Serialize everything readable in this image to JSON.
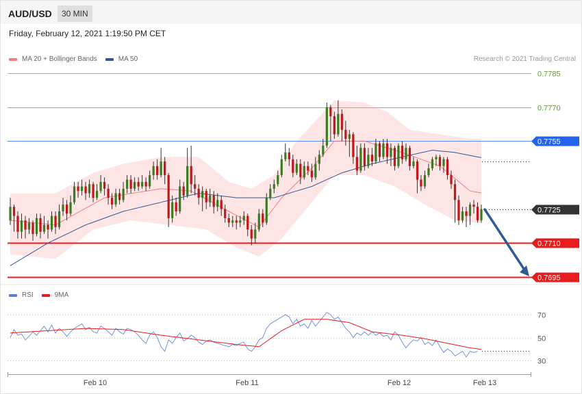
{
  "header": {
    "symbol": "AUD/USD",
    "timeframe": "30 MIN"
  },
  "timestamp": "Friday, February 12, 2021 1:19:50 PM CET",
  "credit": "Research © 2021 Trading Central",
  "legend_main": [
    {
      "label": "MA 20 + Bollinger Bands",
      "color": "#f08080"
    },
    {
      "label": "MA 50",
      "color": "#2f5a94"
    }
  ],
  "legend_rsi": [
    {
      "label": "RSI",
      "color": "#5b7fd6"
    },
    {
      "label": "9MA",
      "color": "#e81c1c"
    }
  ],
  "colors": {
    "up": "#3a7d1e",
    "down": "#c0161c",
    "wick": "#333333",
    "band": "#fcdcdc"
  },
  "chart_data": {
    "type": "candlestick",
    "title": "AUD/USD 30 MIN",
    "price_range": [
      0.769,
      0.7792
    ],
    "x_ticks": [
      "Feb 10",
      "Feb 11",
      "Feb 12",
      "Feb 13"
    ],
    "levels": [
      {
        "value": "0.7785",
        "price": 0.7785,
        "color": "#8dc26b",
        "text_color": "#5aa02c",
        "style": "line"
      },
      {
        "value": "0.7770",
        "price": 0.777,
        "color": "#8dc26b",
        "text_color": "#5aa02c",
        "style": "line"
      },
      {
        "value": "0.7755",
        "price": 0.7755,
        "color": "#5b8def",
        "tag": "#2463eb",
        "style": "line"
      },
      {
        "value": "0.7725",
        "price": 0.7725,
        "color": "#333333",
        "tag": "#333333",
        "style": "current"
      },
      {
        "value": "0.7710",
        "price": 0.771,
        "color": "#e81c1c",
        "tag": "#e81c1c",
        "style": "line"
      },
      {
        "value": "0.7695",
        "price": 0.7695,
        "color": "#e81c1c",
        "tag": "#e81c1c",
        "style": "line"
      }
    ],
    "forecast_arrow": {
      "from": 0.7725,
      "to": 0.7695
    },
    "rsi": {
      "range": [
        20,
        80
      ],
      "levels": [
        70,
        50,
        30
      ]
    },
    "candles": [
      [
        0.772,
        0.7726,
        0.773,
        0.7718
      ],
      [
        0.7726,
        0.7722,
        0.7727,
        0.7715
      ],
      [
        0.7722,
        0.7715,
        0.7724,
        0.7712
      ],
      [
        0.7715,
        0.772,
        0.7723,
        0.7712
      ],
      [
        0.772,
        0.7716,
        0.7722,
        0.7712
      ],
      [
        0.7716,
        0.7719,
        0.7721,
        0.7714
      ],
      [
        0.7719,
        0.7714,
        0.772,
        0.7711
      ],
      [
        0.7714,
        0.7721,
        0.7723,
        0.7713
      ],
      [
        0.7721,
        0.7715,
        0.7723,
        0.7712
      ],
      [
        0.7715,
        0.7718,
        0.7722,
        0.7714
      ],
      [
        0.7718,
        0.7716,
        0.772,
        0.7712
      ],
      [
        0.7716,
        0.7722,
        0.7724,
        0.7715
      ],
      [
        0.7722,
        0.7717,
        0.7724,
        0.7714
      ],
      [
        0.7717,
        0.7724,
        0.7727,
        0.7716
      ],
      [
        0.7724,
        0.7727,
        0.773,
        0.7722
      ],
      [
        0.7727,
        0.7723,
        0.7729,
        0.772
      ],
      [
        0.7723,
        0.7728,
        0.7731,
        0.7722
      ],
      [
        0.7728,
        0.7735,
        0.7737,
        0.7727
      ],
      [
        0.7735,
        0.7733,
        0.7737,
        0.773
      ],
      [
        0.7733,
        0.7735,
        0.7738,
        0.7731
      ],
      [
        0.7735,
        0.7732,
        0.7737,
        0.7729
      ],
      [
        0.7732,
        0.7736,
        0.7738,
        0.773
      ],
      [
        0.7736,
        0.773,
        0.7737,
        0.7728
      ],
      [
        0.773,
        0.7733,
        0.7736,
        0.7729
      ],
      [
        0.7733,
        0.7737,
        0.774,
        0.7732
      ],
      [
        0.7737,
        0.7734,
        0.7739,
        0.7731
      ],
      [
        0.7734,
        0.773,
        0.7736,
        0.7727
      ],
      [
        0.773,
        0.7727,
        0.7732,
        0.7725
      ],
      [
        0.7727,
        0.7732,
        0.7734,
        0.7726
      ],
      [
        0.7732,
        0.7729,
        0.7734,
        0.7727
      ],
      [
        0.7729,
        0.7734,
        0.7737,
        0.7728
      ],
      [
        0.7734,
        0.7738,
        0.774,
        0.7732
      ],
      [
        0.7738,
        0.7734,
        0.774,
        0.7732
      ],
      [
        0.7734,
        0.7737,
        0.7739,
        0.7733
      ],
      [
        0.7737,
        0.7735,
        0.7739,
        0.7733
      ],
      [
        0.7735,
        0.7737,
        0.774,
        0.7734
      ],
      [
        0.7737,
        0.7735,
        0.7739,
        0.7733
      ],
      [
        0.7735,
        0.774,
        0.7742,
        0.7734
      ],
      [
        0.774,
        0.7744,
        0.7746,
        0.7738
      ],
      [
        0.7744,
        0.774,
        0.7747,
        0.7738
      ],
      [
        0.774,
        0.7746,
        0.7752,
        0.7739
      ],
      [
        0.7746,
        0.774,
        0.7748,
        0.7736
      ],
      [
        0.774,
        0.7721,
        0.7741,
        0.7717
      ],
      [
        0.7721,
        0.7728,
        0.7731,
        0.7719
      ],
      [
        0.7728,
        0.7724,
        0.773,
        0.7722
      ],
      [
        0.7724,
        0.7735,
        0.7738,
        0.7723
      ],
      [
        0.7735,
        0.7731,
        0.7737,
        0.7729
      ],
      [
        0.7731,
        0.7744,
        0.7752,
        0.773
      ],
      [
        0.7744,
        0.7736,
        0.7753,
        0.7732
      ],
      [
        0.7736,
        0.7734,
        0.774,
        0.7731
      ],
      [
        0.7734,
        0.773,
        0.7736,
        0.7727
      ],
      [
        0.773,
        0.7733,
        0.7735,
        0.7724
      ],
      [
        0.7733,
        0.7728,
        0.7734,
        0.7725
      ],
      [
        0.7728,
        0.7731,
        0.7734,
        0.7726
      ],
      [
        0.7731,
        0.7726,
        0.7733,
        0.7723
      ],
      [
        0.7726,
        0.7729,
        0.7732,
        0.7724
      ],
      [
        0.7729,
        0.7725,
        0.7731,
        0.7722
      ],
      [
        0.7725,
        0.7721,
        0.7727,
        0.7719
      ],
      [
        0.7721,
        0.7719,
        0.7723,
        0.7717
      ],
      [
        0.7719,
        0.772,
        0.7722,
        0.7717
      ],
      [
        0.772,
        0.7719,
        0.7722,
        0.7716
      ],
      [
        0.7719,
        0.772,
        0.7722,
        0.7717
      ],
      [
        0.772,
        0.7722,
        0.7724,
        0.7718
      ],
      [
        0.7722,
        0.7716,
        0.7723,
        0.7713
      ],
      [
        0.7716,
        0.7712,
        0.7718,
        0.7709
      ],
      [
        0.7712,
        0.7716,
        0.7719,
        0.771
      ],
      [
        0.7716,
        0.7723,
        0.7725,
        0.7715
      ],
      [
        0.7723,
        0.7719,
        0.7725,
        0.7717
      ],
      [
        0.7719,
        0.773,
        0.7732,
        0.7718
      ],
      [
        0.773,
        0.7734,
        0.7736,
        0.7729
      ],
      [
        0.7734,
        0.7736,
        0.7738,
        0.7732
      ],
      [
        0.7736,
        0.774,
        0.7742,
        0.7735
      ],
      [
        0.774,
        0.7747,
        0.7749,
        0.7739
      ],
      [
        0.7747,
        0.775,
        0.7754,
        0.7746
      ],
      [
        0.775,
        0.7747,
        0.7752,
        0.7744
      ],
      [
        0.7747,
        0.7741,
        0.7749,
        0.7739
      ],
      [
        0.7741,
        0.7745,
        0.7747,
        0.774
      ],
      [
        0.7745,
        0.7739,
        0.7747,
        0.7736
      ],
      [
        0.7739,
        0.7744,
        0.7746,
        0.7738
      ],
      [
        0.7744,
        0.7742,
        0.7746,
        0.774
      ],
      [
        0.7742,
        0.7739,
        0.7745,
        0.7737
      ],
      [
        0.7739,
        0.7745,
        0.7748,
        0.7738
      ],
      [
        0.7745,
        0.7749,
        0.7751,
        0.7742
      ],
      [
        0.7749,
        0.7753,
        0.7756,
        0.7748
      ],
      [
        0.7753,
        0.777,
        0.7772,
        0.7752
      ],
      [
        0.777,
        0.7766,
        0.7771,
        0.7755
      ],
      [
        0.7766,
        0.7758,
        0.7768,
        0.7756
      ],
      [
        0.7758,
        0.7767,
        0.7773,
        0.7757
      ],
      [
        0.7767,
        0.776,
        0.7769,
        0.7755
      ],
      [
        0.776,
        0.7756,
        0.7764,
        0.7753
      ],
      [
        0.7756,
        0.7758,
        0.776,
        0.7748
      ],
      [
        0.7758,
        0.7748,
        0.7759,
        0.7745
      ],
      [
        0.7748,
        0.7742,
        0.7753,
        0.774
      ],
      [
        0.7742,
        0.7752,
        0.7754,
        0.7741
      ],
      [
        0.7752,
        0.7744,
        0.7754,
        0.7742
      ],
      [
        0.7744,
        0.7749,
        0.7752,
        0.7743
      ],
      [
        0.7749,
        0.7746,
        0.7752,
        0.7744
      ],
      [
        0.7746,
        0.7754,
        0.7756,
        0.7745
      ],
      [
        0.7754,
        0.7748,
        0.7755,
        0.7746
      ],
      [
        0.7748,
        0.7754,
        0.7756,
        0.7747
      ],
      [
        0.7754,
        0.7748,
        0.7756,
        0.7745
      ],
      [
        0.7748,
        0.7752,
        0.7754,
        0.7744
      ],
      [
        0.7752,
        0.7744,
        0.7753,
        0.7742
      ],
      [
        0.7744,
        0.7753,
        0.7754,
        0.7743
      ],
      [
        0.7753,
        0.7747,
        0.7755,
        0.7745
      ],
      [
        0.7747,
        0.7752,
        0.7754,
        0.7746
      ],
      [
        0.7752,
        0.7744,
        0.7753,
        0.7742
      ],
      [
        0.7744,
        0.7746,
        0.7748,
        0.7743
      ],
      [
        0.7746,
        0.7738,
        0.7747,
        0.7732
      ],
      [
        0.7738,
        0.7735,
        0.774,
        0.7733
      ],
      [
        0.7735,
        0.774,
        0.7742,
        0.7734
      ],
      [
        0.774,
        0.7743,
        0.7745,
        0.7739
      ],
      [
        0.7743,
        0.7747,
        0.7748,
        0.7742
      ],
      [
        0.7747,
        0.7748,
        0.7749,
        0.7744
      ],
      [
        0.7748,
        0.7744,
        0.7749,
        0.7742
      ],
      [
        0.7744,
        0.7747,
        0.7748,
        0.7741
      ],
      [
        0.7747,
        0.774,
        0.7748,
        0.7738
      ],
      [
        0.774,
        0.7736,
        0.7742,
        0.7734
      ],
      [
        0.7736,
        0.7729,
        0.7738,
        0.7719
      ],
      [
        0.7729,
        0.772,
        0.7731,
        0.7718
      ],
      [
        0.772,
        0.7724,
        0.7726,
        0.7719
      ],
      [
        0.7724,
        0.7722,
        0.7726,
        0.7717
      ],
      [
        0.7722,
        0.7727,
        0.7728,
        0.7718
      ],
      [
        0.7727,
        0.7726,
        0.7729,
        0.7723
      ],
      [
        0.7726,
        0.772,
        0.7728,
        0.7719
      ],
      [
        0.772,
        0.7725,
        0.7727,
        0.7719
      ]
    ],
    "ma20": [
      [
        0,
        0.772
      ],
      [
        12,
        0.7718
      ],
      [
        25,
        0.773
      ],
      [
        40,
        0.7734
      ],
      [
        48,
        0.7733
      ],
      [
        58,
        0.7724
      ],
      [
        66,
        0.7717
      ],
      [
        72,
        0.773
      ],
      [
        80,
        0.7743
      ],
      [
        86,
        0.7755
      ],
      [
        94,
        0.7755
      ],
      [
        104,
        0.775
      ],
      [
        114,
        0.7744
      ],
      [
        122,
        0.7733
      ],
      [
        129,
        0.7731
      ]
    ],
    "bb_upper": [
      [
        0,
        0.7732
      ],
      [
        12,
        0.7732
      ],
      [
        22,
        0.7741
      ],
      [
        30,
        0.7745
      ],
      [
        40,
        0.7748
      ],
      [
        50,
        0.7748
      ],
      [
        58,
        0.7737
      ],
      [
        64,
        0.7734
      ],
      [
        70,
        0.774
      ],
      [
        76,
        0.7755
      ],
      [
        86,
        0.7773
      ],
      [
        94,
        0.7772
      ],
      [
        100,
        0.7768
      ],
      [
        106,
        0.776
      ],
      [
        114,
        0.7758
      ],
      [
        122,
        0.7756
      ],
      [
        129,
        0.7756
      ]
    ],
    "bb_lower": [
      [
        0,
        0.7705
      ],
      [
        12,
        0.7703
      ],
      [
        22,
        0.7716
      ],
      [
        32,
        0.772
      ],
      [
        42,
        0.7718
      ],
      [
        52,
        0.7716
      ],
      [
        60,
        0.7708
      ],
      [
        66,
        0.7704
      ],
      [
        72,
        0.7712
      ],
      [
        80,
        0.7728
      ],
      [
        86,
        0.774
      ],
      [
        94,
        0.774
      ],
      [
        102,
        0.7735
      ],
      [
        110,
        0.7727
      ],
      [
        118,
        0.772
      ],
      [
        129,
        0.7718
      ]
    ],
    "ma50": [
      [
        0,
        0.77
      ],
      [
        10,
        0.771
      ],
      [
        20,
        0.7718
      ],
      [
        30,
        0.7724
      ],
      [
        40,
        0.7728
      ],
      [
        50,
        0.7732
      ],
      [
        60,
        0.773
      ],
      [
        70,
        0.773
      ],
      [
        80,
        0.7735
      ],
      [
        88,
        0.7741
      ],
      [
        96,
        0.7745
      ],
      [
        104,
        0.7748
      ],
      [
        112,
        0.7751
      ],
      [
        118,
        0.775
      ],
      [
        124,
        0.7748
      ],
      [
        129,
        0.7747
      ]
    ],
    "rsi_series": [
      50,
      57,
      52,
      53,
      48,
      51,
      55,
      52,
      56,
      60,
      55,
      61,
      54,
      58,
      55,
      51,
      55,
      58,
      60,
      62,
      57,
      59,
      55,
      54,
      60,
      58,
      55,
      52,
      58,
      55,
      53,
      58,
      57,
      55,
      52,
      48,
      45,
      52,
      55,
      50,
      42,
      38,
      48,
      45,
      50,
      54,
      47,
      49,
      52,
      50,
      46,
      44,
      47,
      48,
      46,
      45,
      44,
      43,
      42,
      44,
      43,
      45,
      46,
      40,
      38,
      42,
      48,
      50,
      58,
      62,
      64,
      66,
      68,
      70,
      68,
      62,
      66,
      60,
      62,
      58,
      65,
      60,
      64,
      68,
      72,
      70,
      66,
      68,
      63,
      58,
      55,
      50,
      54,
      52,
      55,
      52,
      55,
      52,
      54,
      51,
      52,
      48,
      55,
      52,
      46,
      41,
      45,
      48,
      47,
      50,
      44,
      46,
      43,
      48,
      42,
      37,
      40,
      38,
      34,
      36,
      38,
      33,
      38,
      37,
      38
    ],
    "rsi_ma": [
      [
        0,
        54
      ],
      [
        10,
        56
      ],
      [
        20,
        58
      ],
      [
        30,
        57
      ],
      [
        40,
        52
      ],
      [
        50,
        48
      ],
      [
        60,
        44
      ],
      [
        66,
        42
      ],
      [
        72,
        56
      ],
      [
        78,
        66
      ],
      [
        84,
        66
      ],
      [
        90,
        63
      ],
      [
        96,
        55
      ],
      [
        104,
        52
      ],
      [
        110,
        49
      ],
      [
        116,
        45
      ],
      [
        122,
        41
      ],
      [
        129,
        38
      ]
    ]
  }
}
